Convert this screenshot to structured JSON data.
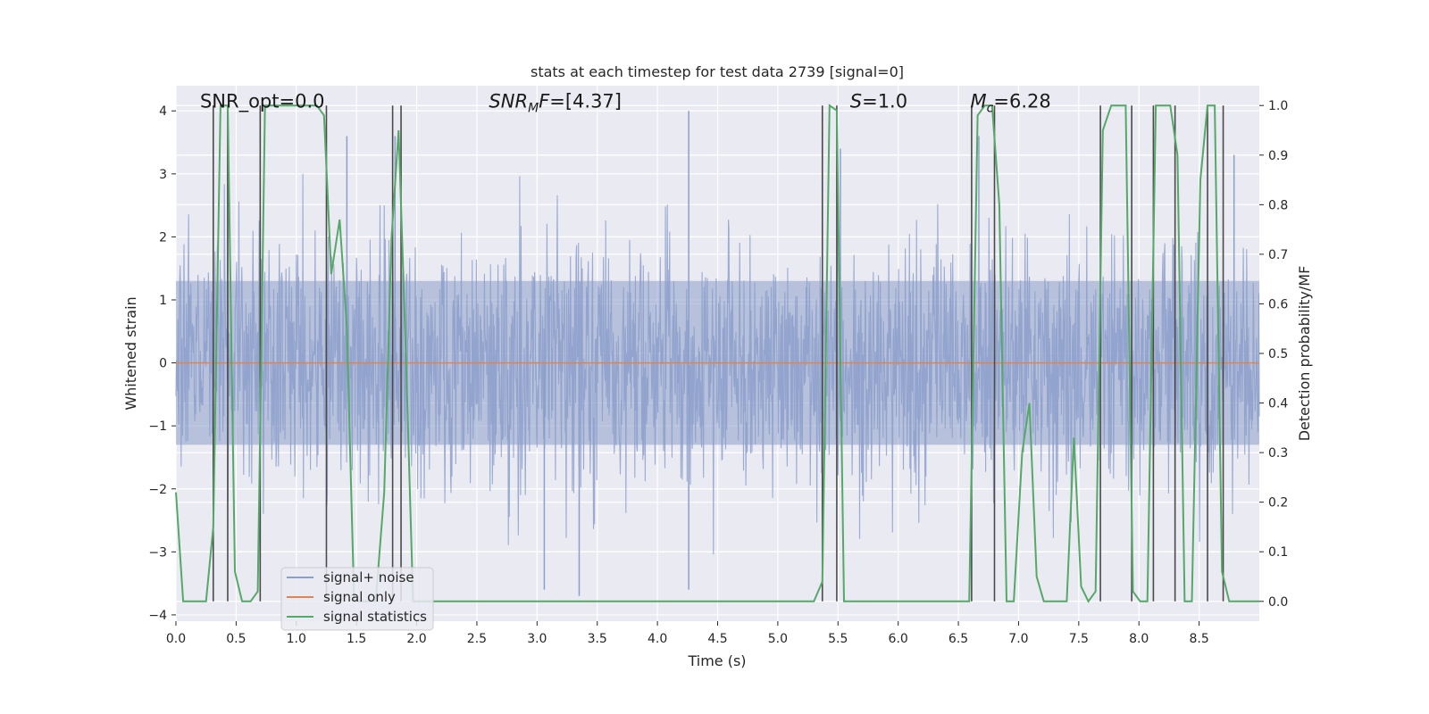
{
  "chart_data": {
    "type": "line",
    "title": "stats at each timestep for test data 2739 [signal=0]",
    "xlabel": "Time (s)",
    "ylabel": "Whitened strain",
    "y2label": "Detection probability/MF",
    "xlim": [
      0.0,
      9.0
    ],
    "ylim": [
      -4.1,
      4.4
    ],
    "y2lim": [
      -0.04,
      1.04
    ],
    "grid": true,
    "xticks": [
      0.0,
      0.5,
      1.0,
      1.5,
      2.0,
      2.5,
      3.0,
      3.5,
      4.0,
      4.5,
      5.0,
      5.5,
      6.0,
      6.5,
      7.0,
      7.5,
      8.0,
      8.5
    ],
    "xtick_labels": [
      "0.0",
      "0.5",
      "1.0",
      "1.5",
      "2.0",
      "2.5",
      "3.0",
      "3.5",
      "4.0",
      "4.5",
      "5.0",
      "5.5",
      "6.0",
      "6.5",
      "7.0",
      "7.5",
      "8.0",
      "8.5"
    ],
    "yticks": [
      -4,
      -3,
      -2,
      -1,
      0,
      1,
      2,
      3,
      4
    ],
    "ytick_labels": [
      "−4",
      "−3",
      "−2",
      "−1",
      "0",
      "1",
      "2",
      "3",
      "4"
    ],
    "y2ticks": [
      0.0,
      0.1,
      0.2,
      0.3,
      0.4,
      0.5,
      0.6,
      0.7,
      0.8,
      0.9,
      1.0
    ],
    "y2tick_labels": [
      "0.0",
      "0.1",
      "0.2",
      "0.3",
      "0.4",
      "0.5",
      "0.6",
      "0.7",
      "0.8",
      "0.9",
      "1.0"
    ],
    "annotations": [
      {
        "name": "snr-opt",
        "text": "SNR_opt=0.0",
        "x": 0.2,
        "y": 4.05
      },
      {
        "name": "snr-mf",
        "text": "SNR_MF=[4.37]",
        "x": 2.6,
        "y": 4.05
      },
      {
        "name": "s-value",
        "text": "S=1.0",
        "x": 5.6,
        "y": 4.05
      },
      {
        "name": "mc-value",
        "text": "M_c=6.28",
        "x": 6.6,
        "y": 4.05
      }
    ],
    "legend": {
      "placement": "lower-left",
      "entries": [
        {
          "label": "signal+ noise",
          "color": "#8c9fcb"
        },
        {
          "label": "signal only",
          "color": "#dd8452"
        },
        {
          "label": "signal statistics",
          "color": "#55a868"
        }
      ]
    },
    "series": [
      {
        "name": "signal+ noise",
        "axis": "left",
        "color": "#8c9fcb",
        "style": "dense-noise",
        "sample_rate": 256,
        "envelope_upper": 1.3,
        "envelope_lower": -1.3,
        "peaks": [
          {
            "x": 0.43,
            "y": 4.0
          },
          {
            "x": 4.26,
            "y": 4.0
          },
          {
            "x": 5.52,
            "y": 3.4
          },
          {
            "x": 6.67,
            "y": 3.6
          },
          {
            "x": 8.79,
            "y": 3.3
          },
          {
            "x": 1.42,
            "y": 3.6
          },
          {
            "x": 1.82,
            "y": 3.6
          },
          {
            "x": 3.06,
            "y": -3.6
          },
          {
            "x": 4.26,
            "y": -3.6
          },
          {
            "x": 3.35,
            "y": -3.7
          }
        ]
      },
      {
        "name": "signal only",
        "axis": "left",
        "color": "#dd8452",
        "x": [
          0.0,
          9.0
        ],
        "y": [
          0.0,
          0.0
        ]
      },
      {
        "name": "signal statistics",
        "axis": "right",
        "color": "#55a868",
        "x": [
          0.0,
          0.06,
          0.12,
          0.18,
          0.25,
          0.31,
          0.37,
          0.43,
          0.49,
          0.55,
          0.62,
          0.68,
          0.74,
          0.8,
          0.86,
          0.92,
          0.99,
          1.05,
          1.11,
          1.17,
          1.23,
          1.29,
          1.36,
          1.42,
          1.48,
          1.54,
          1.6,
          1.66,
          1.73,
          1.79,
          1.85,
          1.91,
          1.97,
          2.03,
          2.1,
          2.2,
          3.0,
          4.0,
          4.6,
          5.0,
          5.3,
          5.37,
          5.43,
          5.49,
          5.55,
          5.61,
          5.8,
          6.0,
          6.5,
          6.59,
          6.66,
          6.72,
          6.78,
          6.84,
          6.9,
          6.96,
          7.03,
          7.09,
          7.15,
          7.21,
          7.27,
          7.33,
          7.4,
          7.46,
          7.52,
          7.58,
          7.64,
          7.7,
          7.77,
          7.83,
          7.89,
          7.95,
          8.01,
          8.07,
          8.14,
          8.2,
          8.26,
          8.32,
          8.38,
          8.44,
          8.51,
          8.57,
          8.63,
          8.69,
          8.75,
          8.81,
          8.87,
          8.94,
          9.0
        ],
        "y": [
          0.22,
          0.0,
          0.0,
          0.0,
          0.0,
          0.15,
          1.0,
          1.0,
          0.06,
          0.0,
          0.0,
          0.02,
          1.0,
          1.0,
          1.0,
          1.0,
          1.0,
          1.0,
          1.0,
          1.0,
          0.98,
          0.66,
          0.77,
          0.55,
          0.0,
          0.0,
          0.0,
          0.0,
          0.22,
          0.73,
          0.95,
          0.5,
          0.0,
          0.0,
          0.0,
          0.0,
          0.0,
          0.0,
          0.0,
          0.0,
          0.0,
          0.04,
          1.0,
          0.99,
          0.0,
          0.0,
          0.0,
          0.0,
          0.0,
          0.0,
          0.98,
          1.0,
          1.0,
          0.8,
          0.0,
          0.0,
          0.3,
          0.4,
          0.05,
          0.0,
          0.0,
          0.0,
          0.0,
          0.33,
          0.03,
          0.0,
          0.02,
          0.95,
          1.0,
          1.0,
          1.0,
          0.02,
          0.0,
          0.0,
          1.0,
          1.0,
          1.0,
          0.9,
          0.0,
          0.0,
          0.85,
          1.0,
          1.0,
          0.06,
          0.0,
          0.0,
          0.0,
          0.0,
          0.0
        ]
      }
    ],
    "vertical_markers": [
      0.31,
      0.43,
      0.7,
      1.25,
      1.8,
      1.87,
      5.37,
      5.49,
      6.61,
      6.8,
      7.68,
      7.94,
      8.12,
      8.3,
      8.57,
      8.7
    ]
  }
}
